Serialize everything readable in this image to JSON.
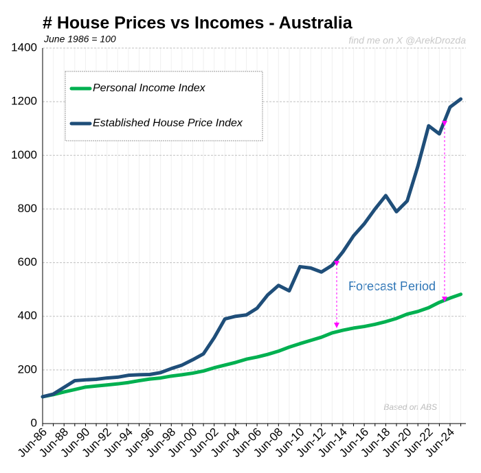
{
  "chart_data": {
    "type": "line",
    "title": "# House Prices vs Incomes - Australia",
    "subtitle": "June 1986 = 100",
    "annotations": [
      "find me on X @ArekDrozda",
      "Forecast Period",
      "Based on ABS"
    ],
    "categories": [
      "Jun-86",
      null,
      "Jun-88",
      null,
      "Jun-90",
      null,
      "Jun-92",
      null,
      "Jun-94",
      null,
      "Jun-96",
      null,
      "Jun-98",
      null,
      "Jun-00",
      null,
      "Jun-02",
      null,
      "Jun-04",
      null,
      "Jun-06",
      null,
      "Jun-08",
      null,
      "Jun-10",
      null,
      "Jun-12",
      null,
      "Jun-14",
      null,
      "Jun-16",
      null,
      "Jun-18",
      null,
      "Jun-20",
      null,
      "Jun-22",
      null,
      "Jun-24",
      null
    ],
    "series": [
      {
        "name": "Personal Income Index",
        "color": "#00b050",
        "values": [
          100,
          108,
          118,
          127,
          136,
          140,
          144,
          148,
          153,
          160,
          166,
          170,
          177,
          182,
          188,
          196,
          208,
          218,
          228,
          240,
          248,
          258,
          270,
          285,
          298,
          310,
          322,
          338,
          348,
          356,
          362,
          370,
          380,
          392,
          408,
          418,
          432,
          452,
          468,
          482
        ]
      },
      {
        "name": "Established House Price Index",
        "color": "#1f4e79",
        "values": [
          100,
          110,
          135,
          160,
          163,
          165,
          170,
          173,
          180,
          182,
          183,
          190,
          205,
          218,
          238,
          260,
          320,
          390,
          400,
          405,
          430,
          480,
          515,
          495,
          585,
          580,
          565,
          590,
          640,
          700,
          745,
          800,
          850,
          790,
          830,
          960,
          1110,
          1080,
          1180,
          1210
        ]
      }
    ],
    "ylim": [
      0,
      1400
    ],
    "yticks": [
      0,
      200,
      400,
      600,
      800,
      1000,
      1200,
      1400
    ],
    "grid": true,
    "legend": "upper left"
  }
}
